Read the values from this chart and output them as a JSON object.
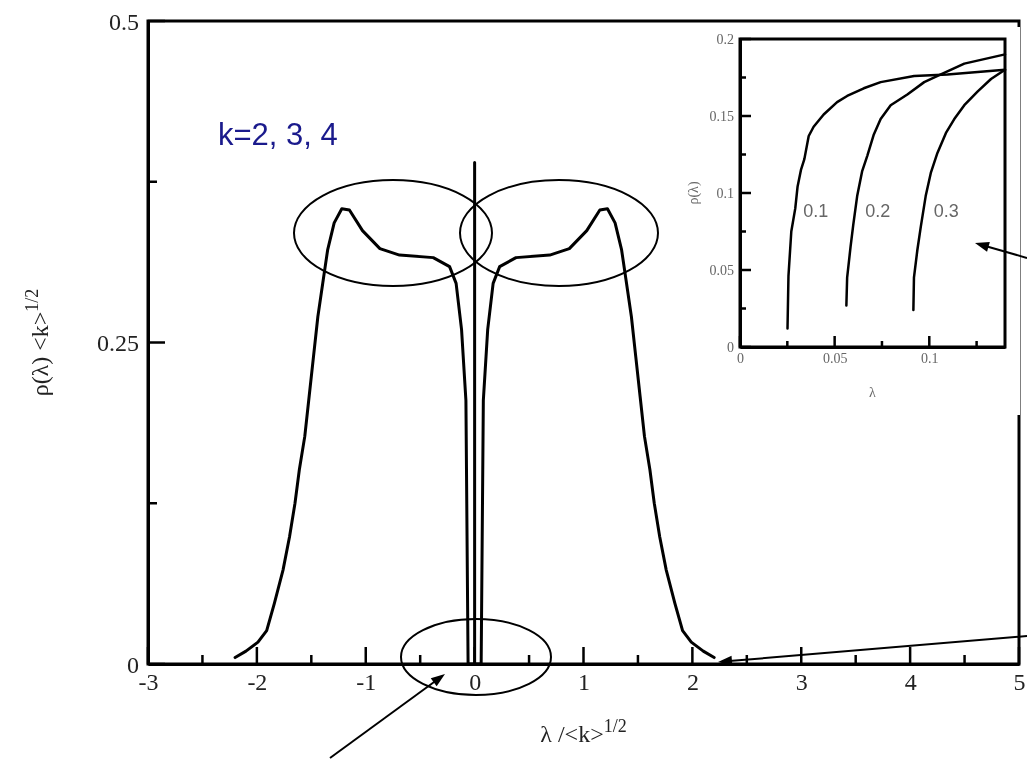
{
  "chart_data": [
    {
      "type": "line",
      "xlabel": "λ /<k>$^{1/2}$",
      "ylabel": "ρ(λ) <k>$^{1/2}$",
      "annotations": [
        "k=2, 3, 4"
      ],
      "xlim": [
        -3,
        5
      ],
      "ylim": [
        0,
        0.5
      ],
      "xticks": [
        -3,
        {
          "value": -2.5,
          "label": null
        },
        -2,
        {
          "value": -1.5,
          "label": null
        },
        -1,
        {
          "value": -0.5,
          "label": null
        },
        0,
        {
          "value": 0.5,
          "label": null
        },
        1,
        {
          "value": 1.5,
          "label": null
        },
        2,
        {
          "value": 2.5,
          "label": null
        },
        3,
        {
          "value": 3.5,
          "label": null
        },
        4,
        {
          "value": 4.5,
          "label": null
        },
        5
      ],
      "yticks": [
        0,
        {
          "value": 0.125,
          "label": null
        },
        0.25,
        {
          "value": 0.375,
          "label": null
        },
        0.5
      ],
      "series": [
        {
          "color": "#000000",
          "x": [
            -2.2,
            -2.1,
            -1.99,
            -1.91,
            -1.84,
            -1.76,
            -1.7,
            -1.65,
            -1.61,
            -1.56,
            -1.52,
            -1.48,
            -1.44,
            -1.39,
            -1.35,
            -1.29,
            -1.22,
            -1.15,
            -1.03,
            -0.87,
            -0.69,
            -0.38,
            -0.23,
            -0.17,
            -0.12,
            -0.08,
            -0.06,
            0,
            0,
            0,
            0.06,
            0.08,
            0.12,
            0.17,
            0.23,
            0.38,
            0.69,
            0.87,
            1.03,
            1.15,
            1.22,
            1.29,
            1.35,
            1.39,
            1.44,
            1.48,
            1.52,
            1.56,
            1.61,
            1.65,
            1.7,
            1.76,
            1.84,
            1.91,
            1.99,
            2.1,
            2.2
          ],
          "values": [
            0.005,
            0.01,
            0.017,
            0.026,
            0.047,
            0.073,
            0.099,
            0.125,
            0.151,
            0.177,
            0.208,
            0.239,
            0.27,
            0.299,
            0.322,
            0.343,
            0.354,
            0.353,
            0.337,
            0.323,
            0.318,
            0.316,
            0.309,
            0.296,
            0.26,
            0.205,
            0,
            0,
            0.39,
            0,
            0,
            0.205,
            0.26,
            0.296,
            0.309,
            0.316,
            0.318,
            0.323,
            0.337,
            0.353,
            0.354,
            0.343,
            0.322,
            0.299,
            0.27,
            0.239,
            0.208,
            0.177,
            0.151,
            0.125,
            0.099,
            0.073,
            0.047,
            0.026,
            0.017,
            0.01,
            0.005
          ]
        }
      ]
    },
    {
      "type": "line",
      "xlabel": "λ",
      "ylabel": "ρ(λ)",
      "xlim": [
        0,
        0.14
      ],
      "ylim": [
        0,
        0.2
      ],
      "xticks": [
        0,
        {
          "value": 0.025,
          "label": null
        },
        0.05,
        {
          "value": 0.075,
          "label": null
        },
        0.1,
        {
          "value": 0.125,
          "label": null
        }
      ],
      "yticks": [
        0,
        {
          "value": 0.025,
          "label": null
        },
        0.05,
        {
          "value": 0.075,
          "label": null
        },
        0.1,
        {
          "value": 0.125,
          "label": null
        },
        0.15,
        {
          "value": 0.175,
          "label": null
        },
        0.2
      ],
      "series": [
        {
          "name": "0.1",
          "color": "#000000",
          "x": [
            0.0251,
            0.0256,
            0.0271,
            0.0292,
            0.0304,
            0.0322,
            0.034,
            0.0363,
            0.0389,
            0.0442,
            0.0513,
            0.0566,
            0.0654,
            0.0743,
            0.092,
            0.1096,
            0.14
          ],
          "values": [
            0.012,
            0.046,
            0.075,
            0.09,
            0.104,
            0.115,
            0.122,
            0.137,
            0.143,
            0.151,
            0.159,
            0.163,
            0.168,
            0.172,
            0.176,
            0.177,
            0.18
          ]
        },
        {
          "name": "0.2",
          "color": "#000000",
          "x": [
            0.0562,
            0.0566,
            0.0584,
            0.0598,
            0.0619,
            0.0645,
            0.0672,
            0.0707,
            0.0743,
            0.0796,
            0.0884,
            0.0973,
            0.1061,
            0.1185,
            0.14
          ],
          "values": [
            0.027,
            0.045,
            0.065,
            0.079,
            0.098,
            0.114,
            0.124,
            0.138,
            0.148,
            0.157,
            0.164,
            0.172,
            0.177,
            0.184,
            0.19
          ]
        },
        {
          "name": "0.3",
          "color": "#000000",
          "x": [
            0.0916,
            0.0919,
            0.0937,
            0.0955,
            0.0981,
            0.1008,
            0.1043,
            0.1088,
            0.1132,
            0.1185,
            0.1256,
            0.1326,
            0.14
          ],
          "values": [
            0.024,
            0.045,
            0.063,
            0.078,
            0.098,
            0.113,
            0.126,
            0.139,
            0.148,
            0.157,
            0.166,
            0.174,
            0.18
          ]
        }
      ]
    }
  ]
}
